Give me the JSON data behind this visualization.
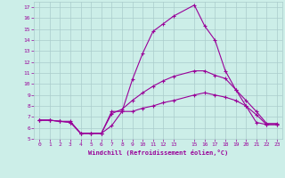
{
  "xlabel": "Windchill (Refroidissement éolien,°C)",
  "background_color": "#cceee8",
  "line_color": "#990099",
  "grid_color": "#aacccc",
  "xlim": [
    -0.5,
    23.5
  ],
  "ylim": [
    5,
    17.5
  ],
  "xticks": [
    0,
    1,
    2,
    3,
    4,
    5,
    6,
    7,
    8,
    9,
    10,
    11,
    12,
    13,
    15,
    16,
    17,
    18,
    19,
    20,
    21,
    22,
    23
  ],
  "yticks": [
    5,
    6,
    7,
    8,
    9,
    10,
    11,
    12,
    13,
    14,
    15,
    16,
    17
  ],
  "series1_x": [
    0,
    1,
    2,
    3,
    4,
    5,
    6,
    7,
    8,
    9,
    10,
    11,
    12,
    13,
    15,
    16,
    17,
    18,
    19,
    20,
    21,
    22,
    23
  ],
  "series1_y": [
    6.7,
    6.7,
    6.6,
    6.6,
    5.5,
    5.5,
    5.5,
    7.5,
    7.5,
    10.4,
    12.8,
    14.8,
    15.5,
    16.2,
    17.2,
    15.3,
    14.0,
    11.2,
    9.5,
    8.0,
    6.5,
    6.3,
    6.3
  ],
  "series2_x": [
    0,
    1,
    2,
    3,
    4,
    5,
    6,
    7,
    8,
    9,
    10,
    11,
    12,
    13,
    15,
    16,
    17,
    18,
    19,
    20,
    21,
    22,
    23
  ],
  "series2_y": [
    6.7,
    6.7,
    6.6,
    6.5,
    5.5,
    5.5,
    5.5,
    7.3,
    7.7,
    8.5,
    9.2,
    9.8,
    10.3,
    10.7,
    11.2,
    11.2,
    10.8,
    10.5,
    9.5,
    8.5,
    7.5,
    6.4,
    6.4
  ],
  "series3_x": [
    0,
    1,
    2,
    3,
    4,
    5,
    6,
    7,
    8,
    9,
    10,
    11,
    12,
    13,
    15,
    16,
    17,
    18,
    19,
    20,
    21,
    22,
    23
  ],
  "series3_y": [
    6.7,
    6.7,
    6.6,
    6.5,
    5.5,
    5.5,
    5.5,
    6.2,
    7.5,
    7.5,
    7.8,
    8.0,
    8.3,
    8.5,
    9.0,
    9.2,
    9.0,
    8.8,
    8.5,
    8.0,
    7.2,
    6.3,
    6.3
  ]
}
